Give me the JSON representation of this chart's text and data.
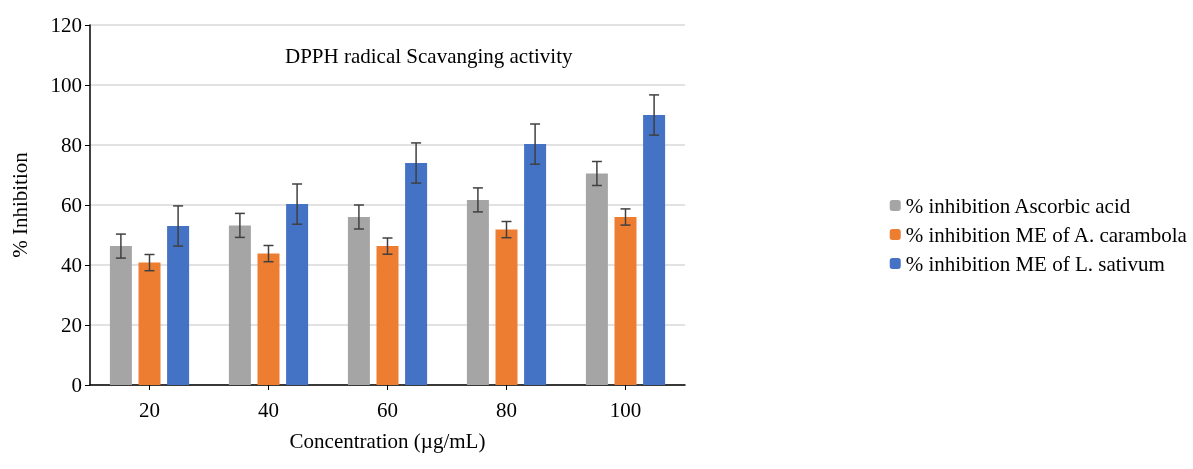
{
  "chart_data": {
    "type": "bar",
    "title": "DPPH radical Scavanging activity",
    "xlabel": "Concentration (µg/mL)",
    "ylabel": "% Inhibition",
    "categories": [
      "20",
      "40",
      "60",
      "80",
      "100"
    ],
    "series": [
      {
        "name": "% inhibition Ascorbic acid",
        "color": "#a5a5a5",
        "values": [
          46.3,
          53.2,
          56,
          61.7,
          70.5
        ],
        "errors": [
          4,
          4,
          4,
          4,
          4
        ]
      },
      {
        "name": "% inhibition ME of A. carambola",
        "color": "#ed7d31",
        "values": [
          40.8,
          43.8,
          46.3,
          51.8,
          56
        ],
        "errors": [
          2.7,
          2.7,
          2.7,
          2.7,
          2.7
        ]
      },
      {
        "name": "% inhibition ME of L. sativum",
        "color": "#4472c4",
        "values": [
          53,
          60.3,
          74,
          80.3,
          90
        ],
        "errors": [
          6.7,
          6.7,
          6.7,
          6.7,
          6.7
        ]
      }
    ],
    "ylim": [
      0,
      120
    ],
    "yticks": [
      0,
      20,
      40,
      60,
      80,
      100,
      120
    ],
    "grid": "y",
    "legend": "right"
  }
}
